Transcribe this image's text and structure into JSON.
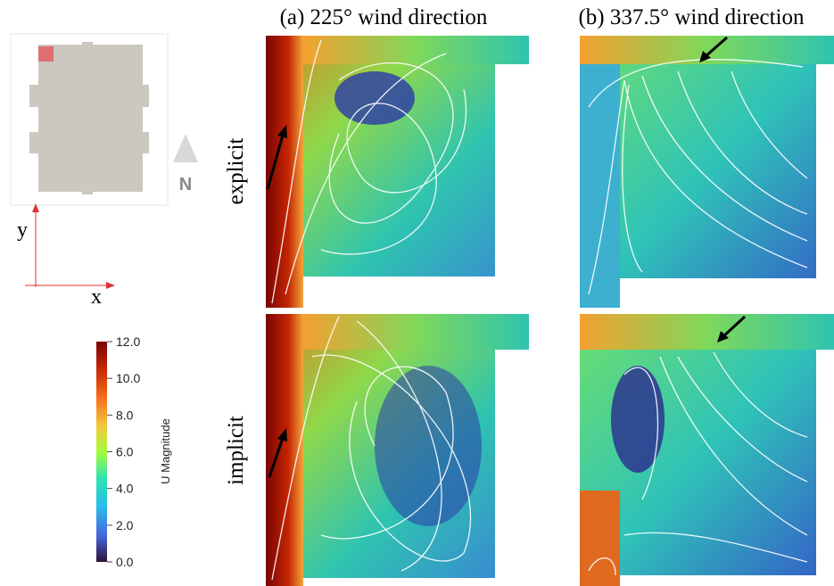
{
  "column_titles": [
    "(a) 225° wind direction",
    "(b) 337.5° wind direction"
  ],
  "row_labels": [
    "explicit",
    "implicit"
  ],
  "site_map": {
    "north": "N",
    "axis_y": "y",
    "axis_x": "x"
  },
  "colorbar": {
    "title": "U Magnitude",
    "range": [
      0,
      12
    ],
    "ticks": [
      {
        "value": 0,
        "label": "0.0"
      },
      {
        "value": 2,
        "label": "2.0"
      },
      {
        "value": 4,
        "label": "4.0"
      },
      {
        "value": 6,
        "label": "6.0"
      },
      {
        "value": 8,
        "label": "8.0"
      },
      {
        "value": 10,
        "label": "10.0"
      },
      {
        "value": 12,
        "label": "12.0"
      }
    ]
  }
}
